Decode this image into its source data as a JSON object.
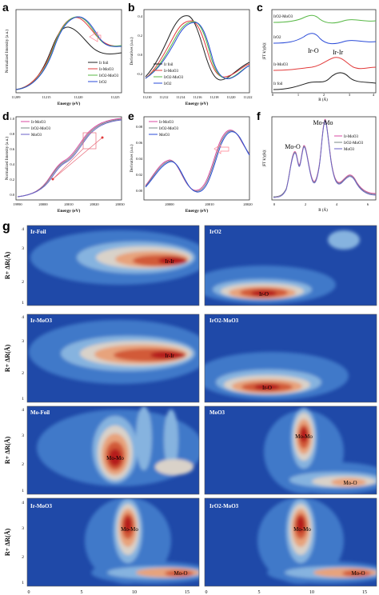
{
  "panels": {
    "a": {
      "letter": "a",
      "xlabel": "Energy (eV)",
      "ylabel": "Normalized Intensity (a.u.)",
      "xticks": [
        "11209",
        "11215",
        "11220",
        "11225"
      ],
      "legend": [
        "Ir foil",
        "Ir-MoO3",
        "IrO2-MoO3",
        "IrO2"
      ]
    },
    "b": {
      "letter": "b",
      "xlabel": "Energy (eV)",
      "ylabel": "Derivatives (a.u.)",
      "xticks": [
        "11210",
        "11212",
        "11214",
        "11216",
        "11218",
        "11220",
        "11222"
      ],
      "yticks": [
        "0.4",
        "0.2",
        "0.0",
        "-0.2"
      ],
      "legend": [
        "Ir foil",
        "Ir-MoO3",
        "IrO2-MoO3",
        "IrO2"
      ]
    },
    "c": {
      "letter": "c",
      "xlabel": "R (Å)",
      "ylabel": "|FT k³χ(k)|",
      "xticks": [
        "0",
        "1",
        "2",
        "3",
        "4"
      ],
      "labels": [
        "IrO2-MoO3",
        "IrO2",
        "Ir-MoO3",
        "Ir foil"
      ],
      "annotations": [
        "Ir-O",
        "Ir-Ir"
      ]
    },
    "d": {
      "letter": "d",
      "xlabel": "Energy (eV)",
      "ylabel": "Normalized Intensity (a.u.)",
      "xticks": [
        "19990",
        "20000",
        "20010",
        "20020",
        "20030"
      ],
      "yticks": [
        "1.0",
        "0.8",
        "0.6",
        "0.4",
        "0.2",
        "0.0"
      ],
      "legend": [
        "Ir-MoO3",
        "IrO2-MoO3",
        "MoO3"
      ]
    },
    "e": {
      "letter": "e",
      "xlabel": "Energy (eV)",
      "ylabel": "Derivatives (a.u.)",
      "xticks": [
        "20000",
        "20010",
        "20020"
      ],
      "yticks": [
        "0.08",
        "0.06",
        "0.04",
        "0.02",
        "0.00"
      ],
      "legend": [
        "Ir-MoO3",
        "IrO2-MoO3",
        "MoO3"
      ]
    },
    "f": {
      "letter": "f",
      "xlabel": "R (Å)",
      "ylabel": "|FT k³χ(k)|",
      "xticks": [
        "0",
        "2",
        "4",
        "6"
      ],
      "legend": [
        "Ir-MoO3",
        "IrO2-MoO3",
        "MoO3"
      ],
      "annotations": [
        "Mo-Mo",
        "Mo-O"
      ]
    }
  },
  "wavelet": {
    "letter": "g",
    "ylabel": "R+ ΔR(Å)",
    "yticks": [
      "1",
      "2",
      "3",
      "4"
    ],
    "xticks": [
      "0",
      "5",
      "10",
      "15"
    ],
    "maps": [
      {
        "title": "Ir-Foil",
        "peak": "Ir-Ir"
      },
      {
        "title": "IrO2",
        "peak": "Ir-O"
      },
      {
        "title": "Ir-MoO3",
        "peak": "Ir-Ir"
      },
      {
        "title": "IrO2-MoO3",
        "peak": "Ir-O"
      },
      {
        "title": "Mo-Foil",
        "peak": "Mo-Mo"
      },
      {
        "title": "MoO3",
        "peak": "Mo-Mo",
        "peak2": "Mo-O"
      },
      {
        "title": "Ir-MoO3",
        "peak": "Mo-Mo",
        "peak2": "Mo-O"
      },
      {
        "title": "IrO2-MoO3",
        "peak": "Mo-Mo",
        "peak2": "Mo-O"
      }
    ]
  },
  "colors": {
    "black": "#222222",
    "red": "#e23b3b",
    "green": "#58b846",
    "blue": "#2a4bd8",
    "magenta": "#d94aa3",
    "purple": "#6a62c7",
    "grey": "#7a8a86",
    "wt_bg": "#1f49a8",
    "wt_l1": "#3f79c9",
    "wt_l2": "#86b3df",
    "wt_l3": "#d9d2c9",
    "wt_l4": "#e7a37c",
    "wt_l5": "#d25a38",
    "wt_l6": "#b51e1e"
  }
}
